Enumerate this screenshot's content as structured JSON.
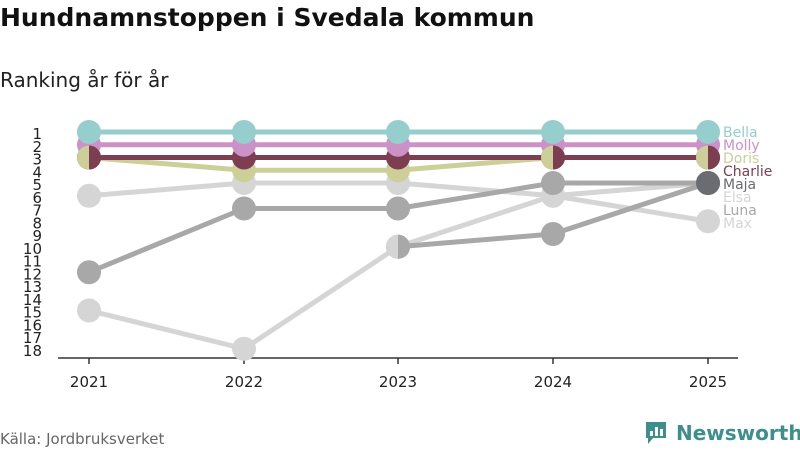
{
  "title": "Hundnamnstoppen i Svedala kommun",
  "subtitle": "Ranking år för år",
  "source": "Källa: Jordbruksverket",
  "brand": "Newsworthy",
  "brand_color": "#3d8f8c",
  "chart_data": {
    "type": "line",
    "x": [
      "2021",
      "2022",
      "2023",
      "2024",
      "2025"
    ],
    "y_ticks": [
      1,
      2,
      3,
      4,
      5,
      6,
      7,
      8,
      9,
      10,
      11,
      12,
      13,
      14,
      15,
      16,
      17,
      18
    ],
    "ylim": [
      1,
      18
    ],
    "y_inverted": true,
    "grid": false,
    "series": [
      {
        "name": "Max",
        "color": "#d5d5d5",
        "values": [
          6,
          5,
          5,
          6,
          8
        ]
      },
      {
        "name": "Luna",
        "color": "#d5d5d5",
        "values": [
          15,
          18,
          10,
          6,
          5
        ]
      },
      {
        "name": "Elsa",
        "color": "#a8a8a8",
        "values": [
          12,
          7,
          7,
          5,
          5
        ]
      },
      {
        "name": "Maja",
        "color": "#a8a8a8",
        "values": [
          null,
          null,
          10,
          9,
          5
        ]
      },
      {
        "name": "Doris",
        "color": "#cccf98",
        "values": [
          3,
          4,
          4,
          3,
          3
        ]
      },
      {
        "name": "Charlie",
        "color": "#7e3e52",
        "values": [
          3,
          3,
          3,
          3,
          3
        ]
      },
      {
        "name": "Molly",
        "color": "#cc92c8",
        "values": [
          2,
          2,
          2,
          2,
          2
        ]
      },
      {
        "name": "Bella",
        "color": "#96cdcd",
        "values": [
          1,
          1,
          1,
          1,
          1
        ]
      }
    ],
    "end_labels": [
      {
        "text": "Bella",
        "color": "#96cdcd"
      },
      {
        "text": "Molly",
        "color": "#cc92c8"
      },
      {
        "text": "Doris",
        "color": "#cccf98"
      },
      {
        "text": "Charlie",
        "color": "#7e3e52"
      },
      {
        "text": "Maja",
        "color": "#6b6c71"
      },
      {
        "text": "Elsa",
        "color": "#d5d5d5"
      },
      {
        "text": "Luna",
        "color": "#a8a8a8"
      },
      {
        "text": "Max",
        "color": "#d5d5d5"
      }
    ]
  }
}
